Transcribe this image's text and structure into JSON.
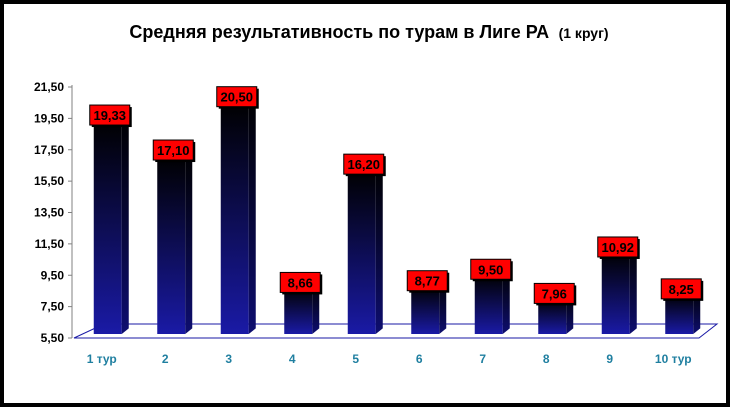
{
  "chart_data": {
    "type": "bar",
    "title": "Средняя результативность по турам в Лиге РА",
    "subtitle": "(1 круг)",
    "categories": [
      "1 тур",
      "2",
      "3",
      "4",
      "5",
      "6",
      "7",
      "8",
      "9",
      "10 тур"
    ],
    "values": [
      19.33,
      17.1,
      20.5,
      8.66,
      16.2,
      8.77,
      9.5,
      7.96,
      10.92,
      8.25
    ],
    "data_labels": [
      "19,33",
      "17,10",
      "20,50",
      "8,66",
      "16,20",
      "8,77",
      "9,50",
      "7,96",
      "10,92",
      "8,25"
    ],
    "y_ticks": [
      "5,50",
      "7,50",
      "9,50",
      "11,50",
      "13,50",
      "15,50",
      "17,50",
      "19,50",
      "21,50"
    ],
    "ylim": [
      5.5,
      21.5
    ],
    "xlabel": "",
    "ylabel": "",
    "grid": false,
    "legend": "none",
    "colors": {
      "bar_top": "#000000",
      "bar_bottom": "#1a1aa6",
      "label_bg": "#ff0000",
      "category_text": "#1f7fa0",
      "floor": "#1a1aa6"
    }
  }
}
